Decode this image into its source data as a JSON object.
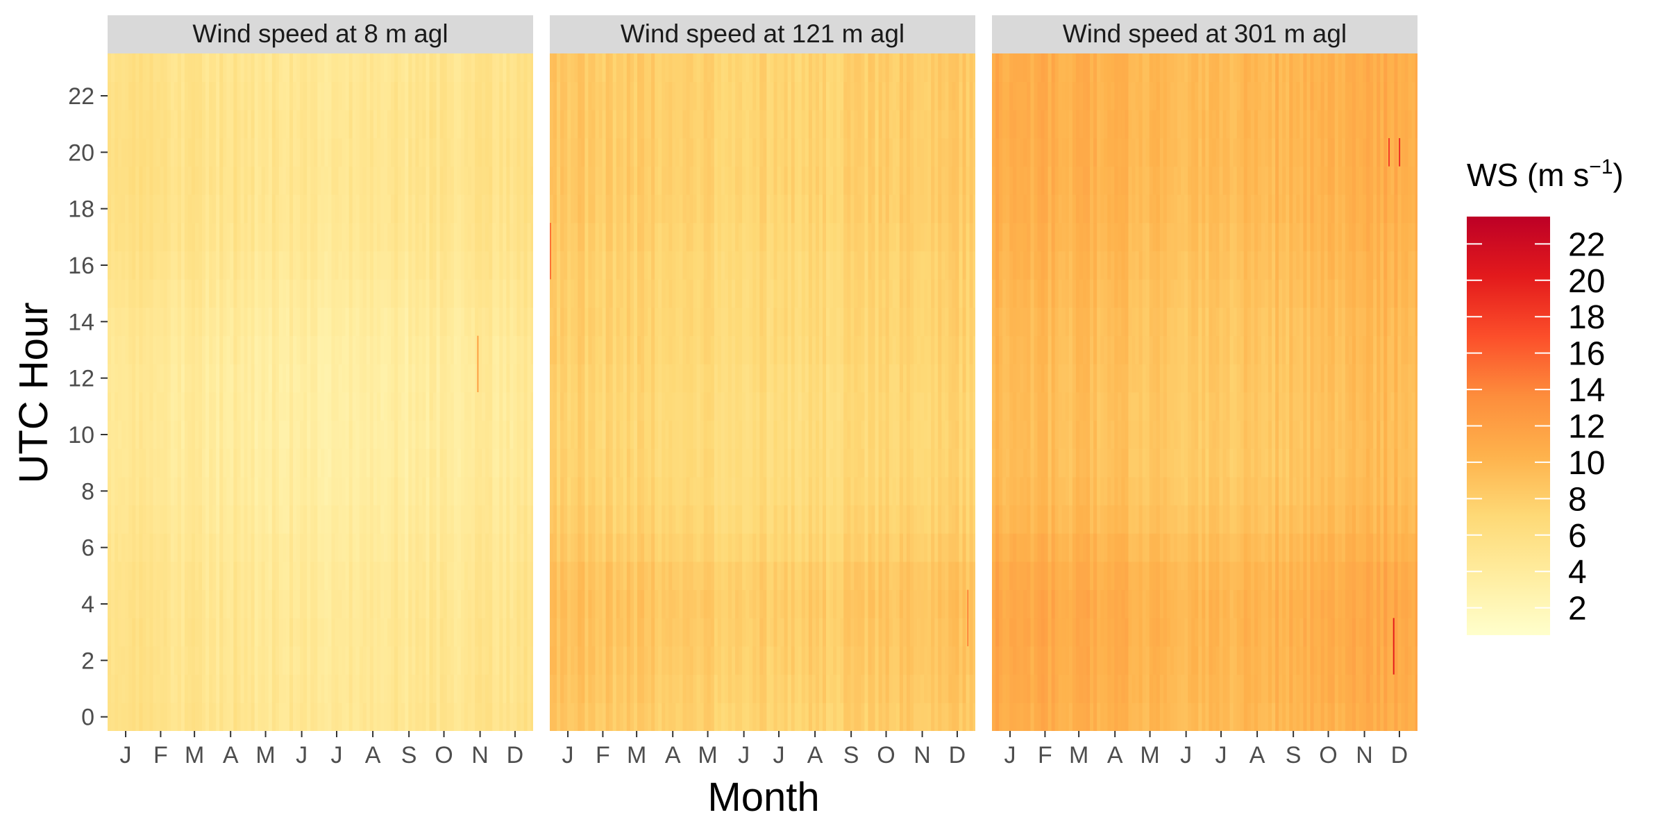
{
  "chart_data": {
    "type": "heatmap",
    "xlabel": "Month",
    "ylabel": "UTC Hour",
    "x_ticks": [
      "J",
      "F",
      "M",
      "A",
      "M",
      "J",
      "J",
      "A",
      "S",
      "O",
      "N",
      "D"
    ],
    "y_ticks": [
      0,
      2,
      4,
      6,
      8,
      10,
      12,
      14,
      16,
      18,
      20,
      22
    ],
    "y_range": [
      0,
      23
    ],
    "x_range_days": [
      1,
      365
    ],
    "panels": [
      {
        "title": "Wind speed at 8 m agl",
        "base_ws": 3.8,
        "hourly_offsets": [
          1.2,
          1.1,
          1.0,
          1.0,
          0.9,
          0.8,
          0.6,
          0.4,
          0.2,
          0.1,
          0.0,
          0.0,
          0.0,
          0.1,
          0.3,
          0.6,
          0.9,
          1.2,
          1.3,
          1.4,
          1.4,
          1.4,
          1.3,
          1.2
        ],
        "monthly_offsets": [
          0.6,
          0.4,
          0.4,
          0.2,
          0.0,
          -0.2,
          -0.3,
          -0.3,
          -0.1,
          0.1,
          0.3,
          0.5
        ],
        "spikes": [
          {
            "day": 318,
            "hour_from": 12,
            "hour_to": 13,
            "ws": 12
          }
        ]
      },
      {
        "title": "Wind speed at 121 m agl",
        "base_ws": 7.6,
        "hourly_offsets": [
          0.4,
          0.6,
          0.8,
          0.9,
          1.0,
          0.8,
          0.2,
          -0.2,
          -0.5,
          -0.6,
          -0.7,
          -0.7,
          -0.6,
          -0.4,
          -0.3,
          -0.3,
          -0.2,
          0.0,
          0.2,
          0.3,
          0.3,
          0.3,
          0.3,
          0.3
        ],
        "monthly_offsets": [
          0.6,
          0.3,
          0.2,
          -0.1,
          -0.3,
          -0.5,
          -0.6,
          -0.4,
          -0.2,
          0.1,
          0.3,
          0.5
        ],
        "spikes": [
          {
            "day": 1,
            "hour_from": 16,
            "hour_to": 17,
            "ws": 15
          },
          {
            "day": 359,
            "hour_from": 3,
            "hour_to": 4,
            "ws": 14
          }
        ]
      },
      {
        "title": "Wind speed at 301 m agl",
        "base_ws": 9.3,
        "hourly_offsets": [
          0.8,
          1.0,
          1.1,
          1.2,
          1.2,
          1.0,
          0.5,
          0.0,
          -0.3,
          -0.5,
          -0.5,
          -0.5,
          -0.4,
          -0.3,
          -0.2,
          0.0,
          0.2,
          0.4,
          0.6,
          0.7,
          0.8,
          0.8,
          0.8,
          0.8
        ],
        "monthly_offsets": [
          0.9,
          0.6,
          0.5,
          0.2,
          -0.2,
          -0.5,
          -0.6,
          -0.4,
          -0.1,
          0.2,
          0.5,
          0.8
        ],
        "spikes": [
          {
            "day": 345,
            "hour_from": 2,
            "hour_to": 3,
            "ws": 20
          },
          {
            "day": 341,
            "hour_from": 20,
            "hour_to": 20,
            "ws": 18
          },
          {
            "day": 350,
            "hour_from": 20,
            "hour_to": 20,
            "ws": 19
          }
        ]
      }
    ],
    "legend": {
      "title_prefix": "WS (m s",
      "title_sup": "−1",
      "title_suffix": ")",
      "ticks": [
        2,
        4,
        6,
        8,
        10,
        12,
        14,
        16,
        18,
        20,
        22
      ],
      "range": [
        0.5,
        23.5
      ],
      "colors": [
        "#ffffcc",
        "#ffeda0",
        "#fed976",
        "#feb24c",
        "#fd8d3c",
        "#fc4e2a",
        "#e31a1c",
        "#bd0026"
      ]
    }
  }
}
